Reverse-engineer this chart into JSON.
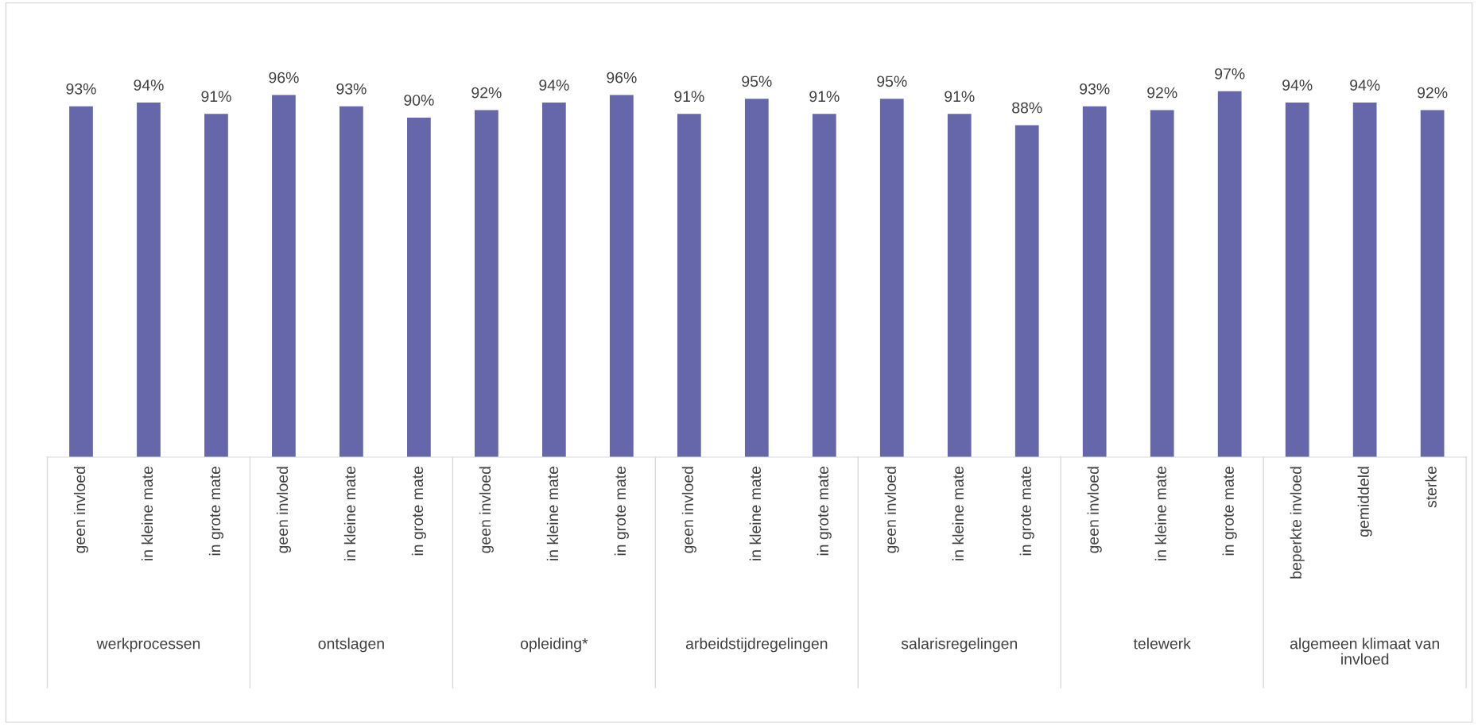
{
  "chart_data": {
    "type": "bar",
    "categories": [
      "geen invloed",
      "in kleine mate",
      "in grote mate",
      "geen invloed",
      "in kleine mate",
      "in grote mate",
      "geen invloed",
      "in kleine mate",
      "in grote mate",
      "geen invloed",
      "in kleine mate",
      "in grote mate",
      "geen invloed",
      "in kleine mate",
      "in grote mate",
      "geen invloed",
      "in kleine mate",
      "in grote mate",
      "beperkte invloed",
      "gemiddeld",
      "sterke"
    ],
    "values": [
      93,
      94,
      91,
      96,
      93,
      90,
      92,
      94,
      96,
      91,
      95,
      91,
      95,
      91,
      88,
      93,
      92,
      97,
      94,
      94,
      92
    ],
    "value_labels": [
      "93%",
      "94%",
      "91%",
      "96%",
      "93%",
      "90%",
      "92%",
      "94%",
      "96%",
      "91%",
      "95%",
      "91%",
      "95%",
      "91%",
      "88%",
      "93%",
      "92%",
      "97%",
      "94%",
      "94%",
      "92%"
    ],
    "color": "#6667ab",
    "tick_labels": "x",
    "grid": false,
    "annotations": [
      "werkprocessen",
      "ontslagen",
      "opleiding*",
      "arbeidstijdregelingen",
      "salarisregelingen",
      "telewerk",
      "algemeen klimaat van invloed"
    ]
  }
}
